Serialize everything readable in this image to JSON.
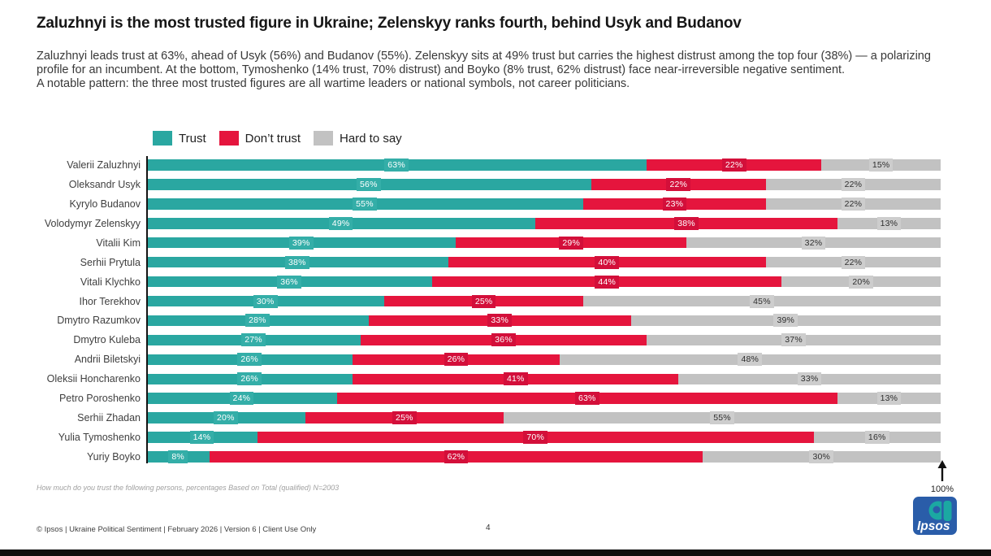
{
  "header": {
    "title": "Zaluzhnyi is the most trusted figure in Ukraine; Zelenskyy ranks fourth, behind Usyk and Budanov"
  },
  "summary": {
    "paragraph1": "Zaluzhnyi leads trust at 63%, ahead of Usyk (56%) and Budanov (55%). Zelenskyy sits at 49% trust but carries the highest distrust among the top four (38%) — a polarizing profile for an incumbent. At the bottom, Tymoshenko (14% trust, 70% distrust) and Boyko (8% trust, 62% distrust) face near-irreversible negative sentiment.",
    "paragraph2": "A notable pattern: the three most trusted figures are all wartime leaders or national symbols, not career politicians."
  },
  "legend": {
    "items": [
      {
        "label": "Trust",
        "color": "#2aa7a1"
      },
      {
        "label": "Don’t trust",
        "color": "#e5153d"
      },
      {
        "label": "Hard to say",
        "color": "#c2c2c2"
      }
    ]
  },
  "chart_data": {
    "type": "bar",
    "orientation": "horizontal-stacked",
    "xlim": [
      0,
      100
    ],
    "axis_max_label": "100%",
    "categories": [
      "Valerii Zaluzhnyi",
      "Oleksandr Usyk",
      "Kyrylo Budanov",
      "Volodymyr Zelenskyy",
      "Vitalii Kim",
      "Serhii Prytula",
      "Vitali Klychko",
      "Ihor Terekhov",
      "Dmytro Razumkov",
      "Dmytro Kuleba",
      "Andrii Biletskyi",
      "Oleksii Honcharenko",
      "Petro Poroshenko",
      "Serhii Zhadan",
      "Yulia Tymoshenko",
      "Yuriy Boyko"
    ],
    "series": [
      {
        "key": "trust",
        "name": "Trust",
        "color": "#2aa7a1",
        "values": [
          63,
          56,
          55,
          49,
          39,
          38,
          36,
          30,
          28,
          27,
          26,
          26,
          24,
          20,
          14,
          8
        ]
      },
      {
        "key": "dont",
        "name": "Don’t trust",
        "color": "#e5153d",
        "values": [
          22,
          22,
          23,
          38,
          29,
          40,
          44,
          25,
          33,
          36,
          26,
          41,
          63,
          25,
          70,
          62
        ]
      },
      {
        "key": "hard",
        "name": "Hard to say",
        "color": "#c2c2c2",
        "values": [
          15,
          22,
          22,
          13,
          32,
          22,
          20,
          45,
          39,
          37,
          48,
          33,
          13,
          55,
          16,
          30
        ]
      }
    ]
  },
  "colors": {
    "trust_chip": "#34aea8",
    "dont_chip": "#d30f3a",
    "hard_chip": "#cdcdcd",
    "chip_text_light": "#ffffff",
    "chip_text_dark": "#2e2e2e",
    "logo_blue": "#2a5da9",
    "logo_teal": "#1ba8a2"
  },
  "axis": {
    "max_label": "100%"
  },
  "footnote": "How much do you trust the following persons, percentages Based on Total (qualified) N=2003",
  "footer": {
    "copyright": "© Ipsos | Ukraine Political Sentiment | February 2026 | Version 6 | Client Use Only",
    "page_number": "4",
    "logo_text": "Ipsos"
  }
}
